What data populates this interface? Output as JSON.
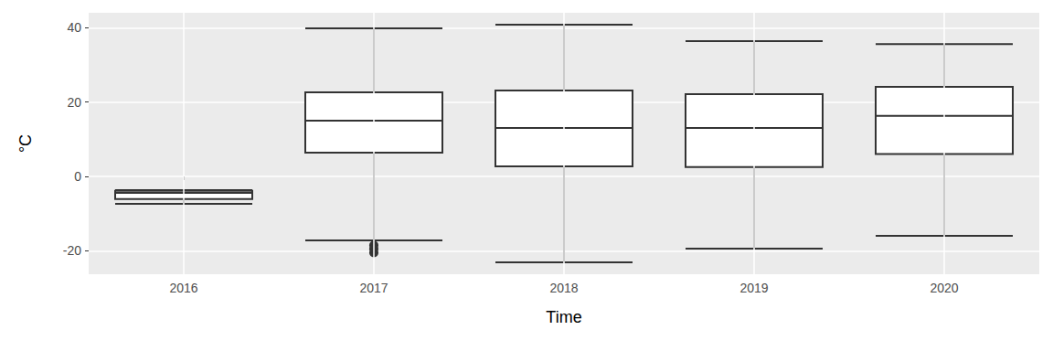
{
  "chart_data": {
    "type": "boxplot",
    "x_label": "Time",
    "y_label": "°C",
    "categories": [
      "2016",
      "2017",
      "2018",
      "2019",
      "2020"
    ],
    "values": [
      [
        -7.4,
        -6.1,
        -4.4,
        -3.9,
        -3.7
      ],
      [
        -17.2,
        6.4,
        15.0,
        22.6,
        39.8
      ],
      [
        -23.1,
        2.7,
        13.0,
        23.1,
        40.8
      ],
      [
        -19.4,
        2.5,
        13.0,
        22.1,
        36.4
      ],
      [
        -16.0,
        6.0,
        16.3,
        24.1,
        35.6
      ]
    ],
    "outliers": [
      [],
      [
        -18.5,
        -19.5,
        -20.5
      ],
      [],
      [],
      []
    ],
    "color": "#333333",
    "ylim": [
      -26.3,
      44.0
    ],
    "yticks": [
      -20,
      0,
      20,
      40
    ],
    "grid": true
  }
}
